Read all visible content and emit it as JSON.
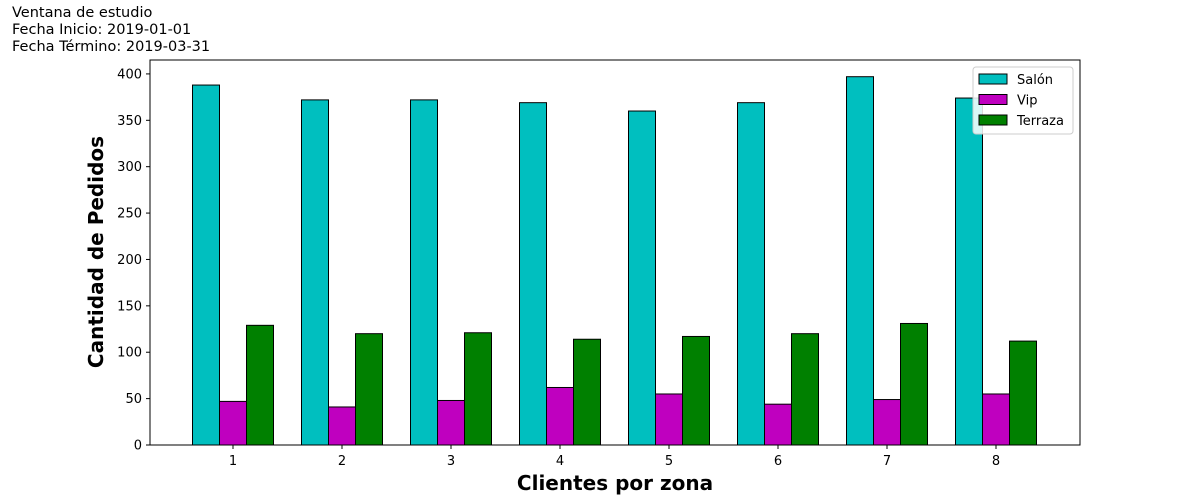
{
  "header": {
    "line1": "Ventana de estudio",
    "line2": "Fecha Inicio: 2019-01-01",
    "line3": "Fecha Término: 2019-03-31"
  },
  "chart_data": {
    "type": "bar",
    "title": "",
    "xlabel": "Clientes por zona",
    "ylabel": "Cantidad de Pedidos",
    "categories": [
      "1",
      "2",
      "3",
      "4",
      "5",
      "6",
      "7",
      "8"
    ],
    "ylim": [
      0,
      415
    ],
    "yticks": [
      0,
      50,
      100,
      150,
      200,
      250,
      300,
      350,
      400
    ],
    "grid": false,
    "legend_position": "top-right",
    "series": [
      {
        "name": "Salón",
        "color": "#00bfbf",
        "values": [
          388,
          372,
          372,
          369,
          360,
          369,
          397,
          374
        ]
      },
      {
        "name": "Vip",
        "color": "#bf00bf",
        "values": [
          47,
          41,
          48,
          62,
          55,
          44,
          49,
          55
        ]
      },
      {
        "name": "Terraza",
        "color": "#008000",
        "values": [
          129,
          120,
          121,
          114,
          117,
          120,
          131,
          112
        ]
      }
    ]
  }
}
